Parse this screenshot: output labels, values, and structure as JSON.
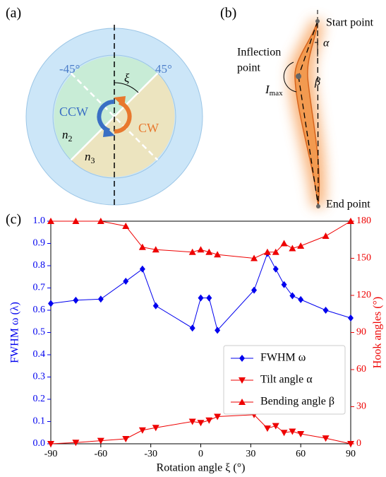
{
  "panel_a": {
    "label": "(a)",
    "left_angle": "-45°",
    "right_angle": "45°",
    "xi": "ξ",
    "ccw": "CCW",
    "cw": "CW",
    "n2": {
      "base": "n",
      "sub": "2"
    },
    "n3": {
      "base": "n",
      "sub": "3"
    }
  },
  "panel_b": {
    "label": "(b)",
    "start": "Start point",
    "inflection_line1": "Inflection",
    "inflection_line2": "point",
    "alpha": "α",
    "beta": "β",
    "imax": {
      "base": "I",
      "sub": "max"
    },
    "end": "End point"
  },
  "panel_c": {
    "label": "(c)"
  },
  "chart_data": {
    "type": "line",
    "xlabel": "Rotation angle ξ (°)",
    "ylabel": "FWHM ω (λ)",
    "y2label": "Hook angles (°)",
    "x": [
      -90,
      -75,
      -60,
      -45,
      -35,
      -27,
      -5,
      0,
      5,
      10,
      32,
      40,
      45,
      50,
      55,
      60,
      75,
      90
    ],
    "xlim": [
      -90,
      90
    ],
    "xticks": [
      -90,
      -60,
      -30,
      0,
      30,
      60,
      90
    ],
    "ylim": [
      0,
      1
    ],
    "yticks": [
      {
        "value": 0,
        "label": "0.0"
      },
      0.1,
      0.2,
      0.3,
      0.4,
      0.5,
      0.6,
      0.7,
      0.8,
      0.9,
      {
        "value": 1,
        "label": "1.0"
      }
    ],
    "y2lim": [
      0,
      180
    ],
    "y2ticks": [
      0,
      30,
      60,
      90,
      120,
      150,
      180
    ],
    "ycolor": "#0000ee",
    "y2color": "#ee0000",
    "legend": "lower right",
    "series": [
      {
        "name": "FWHM ω",
        "color": "#0000ee",
        "marker": "diamond",
        "values": [
          0.63,
          0.645,
          0.65,
          0.73,
          0.785,
          0.62,
          0.52,
          0.655,
          0.655,
          0.51,
          0.69,
          0.855,
          0.785,
          0.715,
          0.665,
          0.648,
          0.6,
          0.565
        ]
      },
      {
        "name": "Tilt angle α",
        "color": "#ee0000",
        "marker": "triangle-down",
        "axis": "y2",
        "values": [
          0,
          1,
          2.5,
          4,
          11,
          13,
          18,
          17,
          19,
          22,
          23.5,
          12.5,
          14.5,
          9,
          10,
          8,
          4.5,
          0
        ]
      },
      {
        "name": "Bending angle β",
        "color": "#ee0000",
        "marker": "triangle-up",
        "axis": "y2",
        "values": [
          180,
          180,
          180,
          176,
          159,
          157,
          155,
          157,
          155,
          153,
          150,
          155,
          155,
          162,
          158,
          160,
          168,
          180
        ]
      }
    ]
  }
}
